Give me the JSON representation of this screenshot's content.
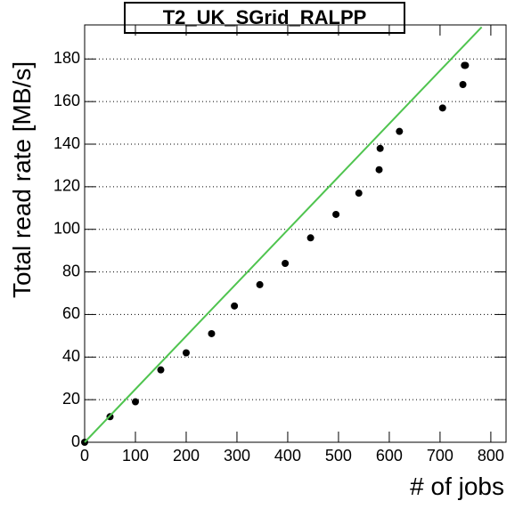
{
  "chart_data": {
    "type": "scatter",
    "title": "T2_UK_SGrid_RALPP",
    "x_label": "# of jobs",
    "y_label": "Total read rate [MB/s]",
    "xlim": [
      0,
      830
    ],
    "ylim": [
      0,
      196
    ],
    "xticks": [
      0,
      100,
      200,
      300,
      400,
      500,
      600,
      700,
      800
    ],
    "yticks": [
      0,
      20,
      40,
      60,
      80,
      100,
      120,
      140,
      160,
      180
    ],
    "grid": true,
    "series": [
      {
        "type": "scatter",
        "color": "#000000",
        "x": [
          0,
          50,
          100,
          150,
          200,
          250,
          295,
          345,
          395,
          445,
          495,
          540,
          580,
          582,
          620,
          705,
          745,
          748,
          750
        ],
        "values": [
          0,
          12,
          19,
          34,
          42,
          51,
          64,
          74,
          84,
          96,
          107,
          117,
          128,
          138,
          146,
          157,
          168,
          177,
          177
        ]
      },
      {
        "type": "line",
        "color": "#4fc44f",
        "x": [
          0,
          782
        ],
        "values": [
          0,
          195
        ]
      }
    ]
  }
}
